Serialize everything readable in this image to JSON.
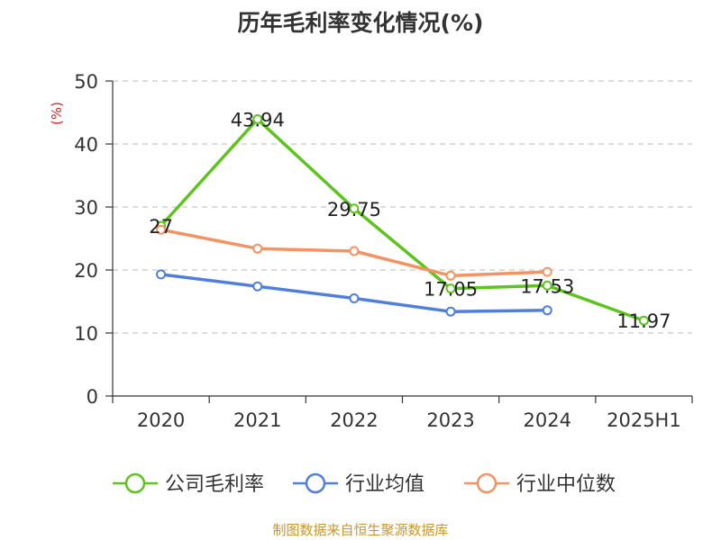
{
  "chart_data": {
    "type": "line",
    "title": "历年毛利率变化情况(%)",
    "ylabel": "(%)",
    "xlabel": "",
    "categories": [
      "2020",
      "2021",
      "2022",
      "2023",
      "2024",
      "2025H1"
    ],
    "ylim": [
      0,
      50
    ],
    "yticks": [
      0,
      10,
      20,
      30,
      40,
      50
    ],
    "grid": true,
    "legend_position": "bottom",
    "series": [
      {
        "name": "公司毛利率",
        "color": "#5cc41c",
        "values": [
          27,
          43.94,
          29.75,
          17.05,
          17.53,
          11.97
        ],
        "labels": [
          "27",
          "43.94",
          "29.75",
          "17.05",
          "17.53",
          "11.97"
        ]
      },
      {
        "name": "行业均值",
        "color": "#4f7fdc",
        "values": [
          19.3,
          17.4,
          15.5,
          13.4,
          13.6,
          null
        ],
        "labels": null
      },
      {
        "name": "行业中位数",
        "color": "#f59262",
        "values": [
          26.4,
          23.4,
          23.0,
          19.1,
          19.7,
          null
        ],
        "labels": null
      }
    ]
  },
  "source": "制图数据来自恒生聚源数据库"
}
